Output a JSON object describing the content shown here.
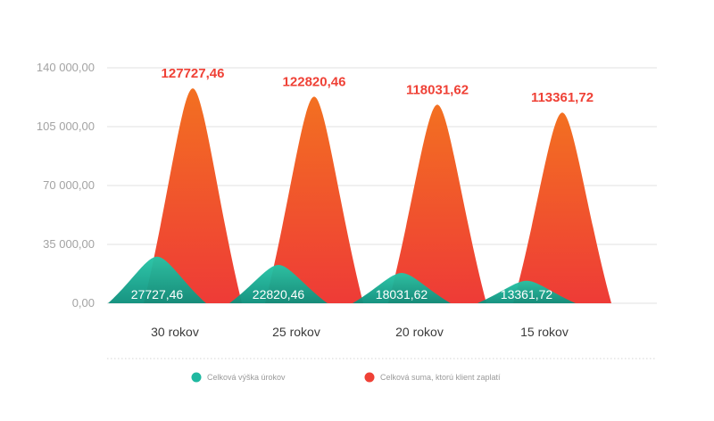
{
  "chart_data": {
    "type": "area",
    "categories": [
      "30 rokov",
      "25 rokov",
      "20 rokov",
      "15 rokov"
    ],
    "series": [
      {
        "name": "Celková výška úrokov",
        "values": [
          27727.46,
          22820.46,
          18031.62,
          13361.72
        ],
        "labels": [
          "27727,46",
          "22820,46",
          "18031,62",
          "13361,72"
        ],
        "color": "#1fb8a0"
      },
      {
        "name": "Celková suma, ktorú klient zaplatí",
        "values": [
          127727.46,
          122820.46,
          118031.62,
          113361.72
        ],
        "labels": [
          "127727,46",
          "122820,46",
          "118031,62",
          "113361,72"
        ],
        "color": "#ef4136"
      }
    ],
    "yticks": [
      0,
      35000,
      70000,
      105000,
      140000
    ],
    "ytick_labels": [
      "0,00",
      "35 000,00",
      "70 000,00",
      "105 000,00",
      "140 000,00"
    ],
    "ylim": [
      0,
      140000
    ],
    "grid": true,
    "legend_position": "bottom"
  }
}
